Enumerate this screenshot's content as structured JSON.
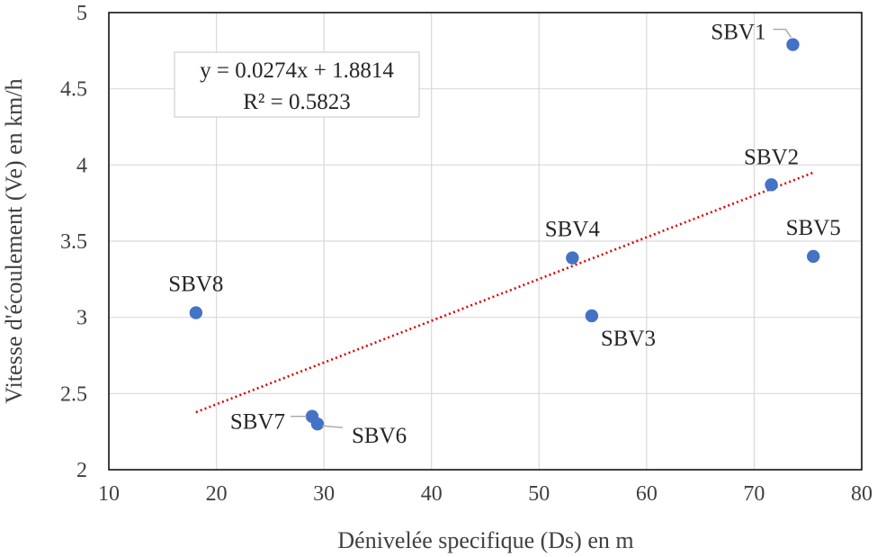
{
  "chart_data": {
    "type": "scatter",
    "xlabel": "Dénivelée specifique (Ds) en m",
    "ylabel": "Vitesse d'écoulement (Ve) en km/h",
    "xlim": [
      10,
      80
    ],
    "ylim": [
      2,
      5
    ],
    "x_ticks": [
      "10",
      "20",
      "30",
      "40",
      "50",
      "60",
      "70",
      "80"
    ],
    "y_ticks": [
      "2",
      "2.5",
      "3",
      "3.5",
      "4",
      "4.5",
      "5"
    ],
    "grid": true,
    "marker_color": "#4472C4",
    "trendline_color": "#E00000",
    "points": [
      {
        "label": "SBV1",
        "x": 73.6,
        "y": 4.79
      },
      {
        "label": "SBV2",
        "x": 71.6,
        "y": 3.87
      },
      {
        "label": "SBV3",
        "x": 54.9,
        "y": 3.01
      },
      {
        "label": "SBV4",
        "x": 53.1,
        "y": 3.39
      },
      {
        "label": "SBV5",
        "x": 75.5,
        "y": 3.4
      },
      {
        "label": "SBV6",
        "x": 29.4,
        "y": 2.3
      },
      {
        "label": "SBV7",
        "x": 28.9,
        "y": 2.35
      },
      {
        "label": "SBV8",
        "x": 18.1,
        "y": 3.03
      }
    ],
    "trendline": {
      "type": "linear",
      "slope": 0.0274,
      "intercept": 1.8814,
      "x_range": [
        18.1,
        75.5
      ],
      "equation": "y = 0.0274x + 1.8814",
      "r_squared": "R² = 0.5823"
    }
  }
}
